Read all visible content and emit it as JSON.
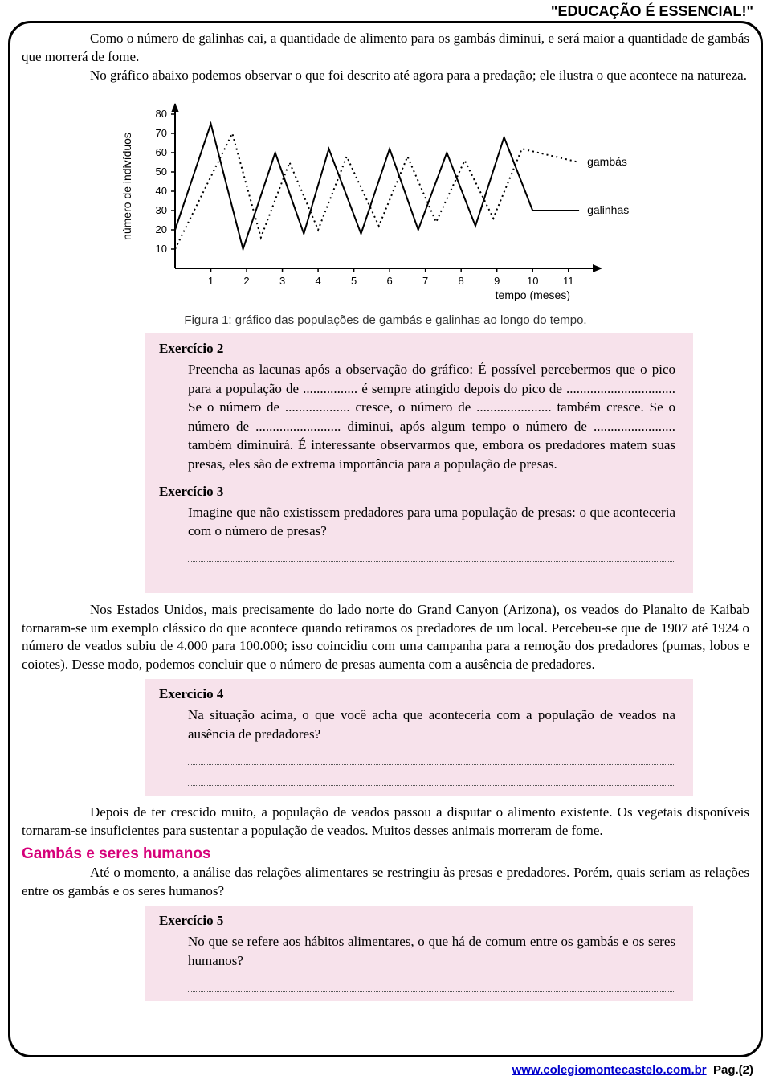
{
  "header": {
    "motto": "\"EDUCAÇÃO É ESSENCIAL!\""
  },
  "paragraphs": {
    "p1": "Como o número de galinhas cai, a quantidade de alimento para os gambás diminui, e será maior a quantidade de gambás que morrerá de fome.",
    "p2": "No gráfico abaixo podemos observar o que foi descrito até agora para a predação; ele ilustra o que acontece na natureza.",
    "p3": "Nos Estados Unidos, mais precisamente do lado norte do Grand Canyon (Arizona), os veados do Planalto de Kaibab tornaram-se um exemplo clássico do que acontece quando retiramos os predadores de um local. Percebeu-se que de 1907 até 1924 o número de veados subiu de 4.000 para 100.000; isso coincidiu com uma campanha para a remoção dos predadores (pumas, lobos e coiotes). Desse modo, podemos concluir que o número de presas aumenta com a ausência de predadores.",
    "p4": "Depois de ter crescido muito, a população de veados passou a disputar o alimento existente. Os vegetais disponíveis tornaram-se insuficientes para sustentar a população de veados. Muitos desses animais morreram de fome.",
    "p5": "Até o momento, a análise das relações alimentares se restringiu às presas e predadores. Porém, quais seriam as relações entre os gambás e os seres humanos?"
  },
  "section": {
    "title": "Gambás e seres humanos"
  },
  "chart": {
    "type": "line",
    "caption": "Figura 1: gráfico das populações de gambás e galinhas ao longo do tempo.",
    "ylabel": "número de indivíduos",
    "xlabel": "tempo (meses)",
    "xlim": [
      0,
      11.5
    ],
    "ylim": [
      0,
      85
    ],
    "xticks": [
      1,
      2,
      3,
      4,
      5,
      6,
      7,
      8,
      9,
      10,
      11
    ],
    "yticks": [
      10,
      20,
      30,
      40,
      50,
      60,
      70,
      80
    ],
    "series": [
      {
        "name": "galinhas",
        "label": "galinhas",
        "style": "solid",
        "color": "#000000",
        "width": 2,
        "points": [
          [
            0,
            20
          ],
          [
            1,
            75
          ],
          [
            1.9,
            10
          ],
          [
            2.8,
            60
          ],
          [
            3.6,
            18
          ],
          [
            4.3,
            62
          ],
          [
            5.2,
            18
          ],
          [
            6,
            62
          ],
          [
            6.8,
            20
          ],
          [
            7.6,
            60
          ],
          [
            8.4,
            22
          ],
          [
            9.2,
            68
          ],
          [
            10,
            30
          ],
          [
            11.3,
            30
          ]
        ]
      },
      {
        "name": "gambas",
        "label": "gambás",
        "style": "dotted",
        "color": "#000000",
        "width": 2,
        "points": [
          [
            0,
            10
          ],
          [
            1.6,
            70
          ],
          [
            2.4,
            16
          ],
          [
            3.2,
            55
          ],
          [
            4.0,
            20
          ],
          [
            4.8,
            58
          ],
          [
            5.7,
            22
          ],
          [
            6.5,
            58
          ],
          [
            7.3,
            24
          ],
          [
            8.1,
            56
          ],
          [
            8.9,
            26
          ],
          [
            9.7,
            62
          ],
          [
            11.3,
            55
          ]
        ]
      }
    ],
    "axis_color": "#000000",
    "tick_fontsize": 13,
    "label_fontsize": 14,
    "background": "#ffffff"
  },
  "exercises": {
    "ex2": {
      "title": "Exercício 2",
      "body": "Preencha as lacunas após a observação do gráfico:\nÉ possível percebermos que o pico para a população de ................ é sempre atingido depois do pico de ................................ Se o número de ................... cresce, o número de ...................... também cresce. Se o número de ......................... diminui, após algum tempo o número de ........................ também diminuirá. É interessante observarmos que, embora os predadores matem suas presas, eles são de extrema importância para a população de presas."
    },
    "ex3": {
      "title": "Exercício 3",
      "body": "Imagine que não existissem predadores para uma população de presas: o que aconteceria com o número de presas?"
    },
    "ex4": {
      "title": "Exercício 4",
      "body": "Na situação acima, o que você acha que aconteceria com a população de veados na ausência de predadores?"
    },
    "ex5": {
      "title": "Exercício 5",
      "body": "No que se refere aos hábitos alimentares, o que há de comum entre os gambás e os seres humanos?"
    }
  },
  "footer": {
    "url": "www.colegiomontecastelo.com.br",
    "page_label": "Pag.(2)"
  }
}
